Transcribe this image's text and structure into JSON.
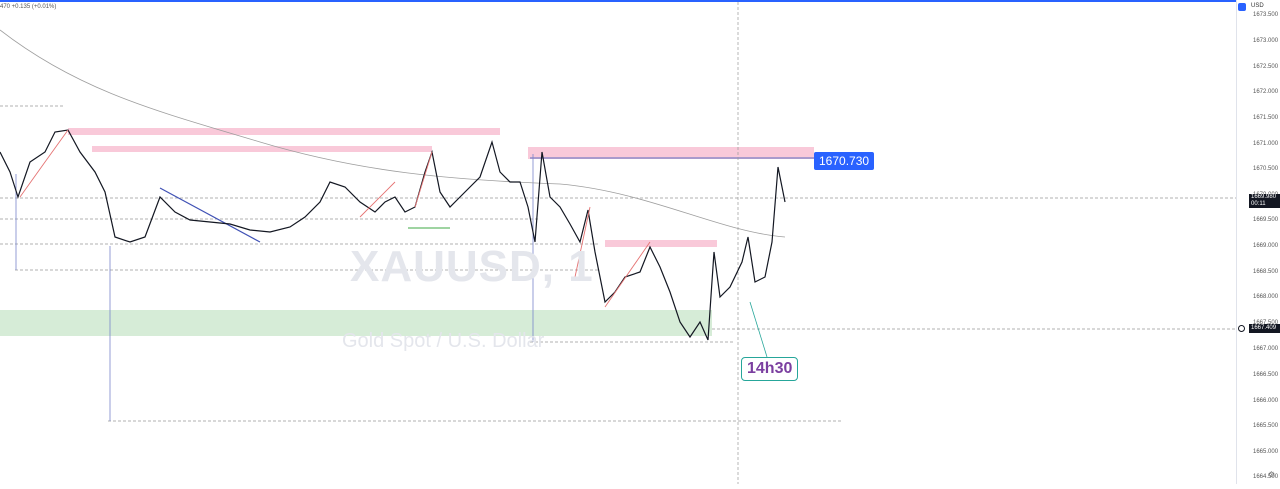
{
  "header": {
    "ohlc_text": "470 +0.135 (+0.01%)",
    "currency": "USD"
  },
  "symbol": {
    "ticker": "XAUUSD, 1",
    "description": "Gold Spot / U.S. Dollar"
  },
  "price_axis": {
    "ticks": [
      "1673.500",
      "1673.000",
      "1672.500",
      "1672.000",
      "1671.500",
      "1671.000",
      "1670.500",
      "1670.000",
      "1669.500",
      "1669.000",
      "1668.500",
      "1668.000",
      "1667.500",
      "1667.000",
      "1666.500",
      "1666.000",
      "1665.500",
      "1665.000",
      "1664.500"
    ]
  },
  "labels": {
    "resistance_price": "1670.730",
    "time_note": "14h30",
    "last_price": "1669.980",
    "countdown": "00:11",
    "level_price": "1667.409"
  },
  "colors": {
    "accent": "#2962ff",
    "zone_pink": "#f8bbd0",
    "zone_green": "#c8e6c9",
    "ma_line": "#9e9e9e"
  }
}
